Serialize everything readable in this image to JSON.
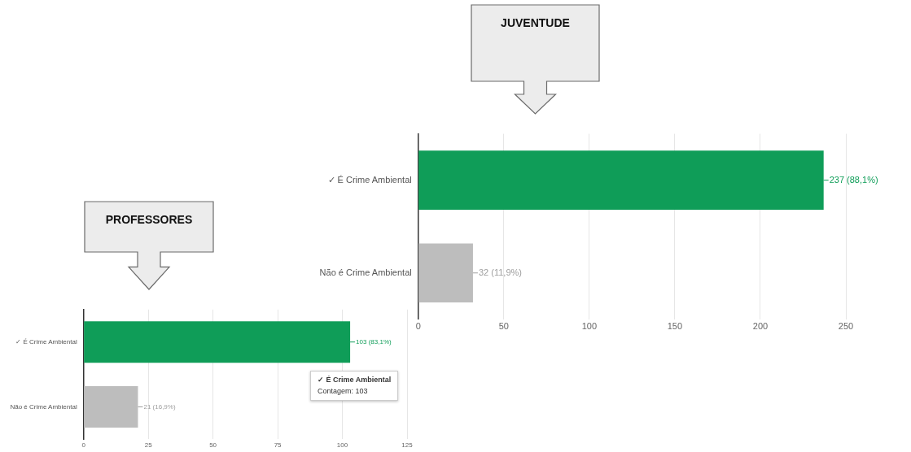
{
  "chart_data": [
    {
      "type": "bar",
      "orientation": "horizontal",
      "title": "PROFESSORES",
      "categories": [
        "✓ É Crime Ambiental",
        "Não é Crime Ambiental"
      ],
      "values": [
        103,
        21
      ],
      "colors": [
        "#0f9d58",
        "#bdbdbd"
      ],
      "value_labels": [
        "103 (83,1%)",
        "21 (16,9%)"
      ],
      "xlim": [
        0,
        125
      ],
      "xticks": [
        0,
        25,
        50,
        75,
        100,
        125
      ],
      "grid": "x",
      "legend": false,
      "annotations": [
        "✓ É Crime Ambiental",
        "Contagem: 103"
      ]
    },
    {
      "type": "bar",
      "orientation": "horizontal",
      "title": "JUVENTUDE",
      "categories": [
        "✓ É Crime Ambiental",
        "Não é Crime Ambiental"
      ],
      "values": [
        237,
        32
      ],
      "colors": [
        "#0f9d58",
        "#bdbdbd"
      ],
      "value_labels": [
        "237 (88,1%)",
        "32 (11,9%)"
      ],
      "xlim": [
        0,
        250
      ],
      "xticks": [
        0,
        50,
        100,
        150,
        200,
        250
      ],
      "grid": "x",
      "legend": false
    }
  ]
}
